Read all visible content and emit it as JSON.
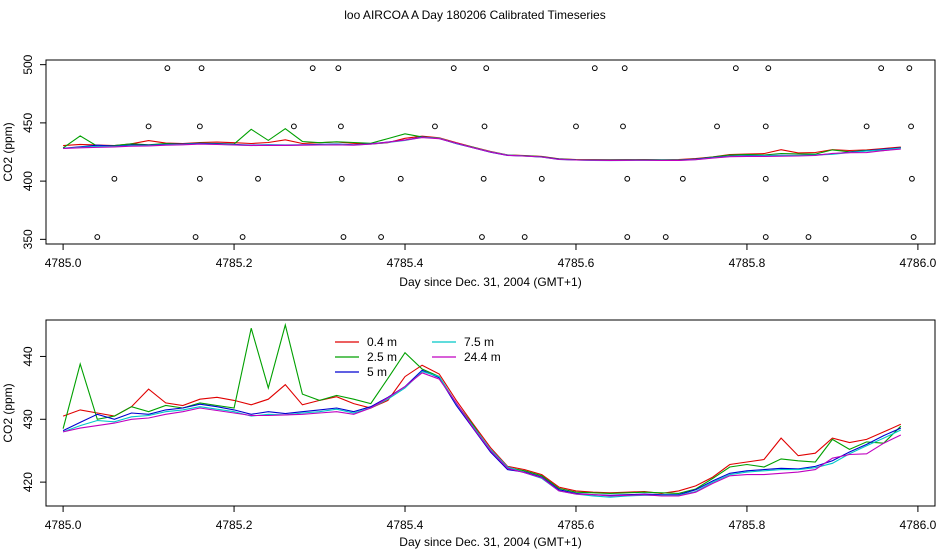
{
  "chart_data": {
    "title": "loo AIRCOA A  Day 180206  Calibrated Timeseries",
    "colors": {
      "0.4 m": "#e00000",
      "2.5 m": "#00a000",
      "5 m": "#0000d0",
      "7.5 m": "#00c8c8",
      "24.4 m": "#c000c0"
    },
    "panels": [
      {
        "type": "line",
        "xlabel": "Day since Dec. 31, 2004 (GMT+1)",
        "ylabel": "CO2 (ppm)",
        "xlim": [
          4784.98,
          4786.02
        ],
        "ylim": [
          346,
          504
        ],
        "xticks": [
          4785.0,
          4785.2,
          4785.4,
          4785.6,
          4785.8,
          4786.0
        ],
        "xtick_labels": [
          "4785.0",
          "4785.2",
          "4785.4",
          "4785.6",
          "4785.8",
          "4786.0"
        ],
        "yticks": [
          350,
          400,
          450,
          500
        ],
        "ytick_labels": [
          "350",
          "400",
          "450",
          "500"
        ],
        "series_names": [
          "0.4 m",
          "2.5 m",
          "5 m",
          "7.5 m",
          "24.4 m"
        ],
        "scatter": {
          "levels": [
            352,
            402,
            447,
            497
          ],
          "points": [
            [
              4785.122,
              497
            ],
            [
              4785.162,
              497
            ],
            [
              4785.292,
              497
            ],
            [
              4785.322,
              497
            ],
            [
              4785.457,
              497
            ],
            [
              4785.495,
              497
            ],
            [
              4785.622,
              497
            ],
            [
              4785.657,
              497
            ],
            [
              4785.787,
              497
            ],
            [
              4785.825,
              497
            ],
            [
              4785.957,
              497
            ],
            [
              4785.99,
              497
            ],
            [
              4785.1,
              447
            ],
            [
              4785.16,
              447
            ],
            [
              4785.27,
              447
            ],
            [
              4785.325,
              447
            ],
            [
              4785.435,
              447
            ],
            [
              4785.493,
              447
            ],
            [
              4785.6,
              447
            ],
            [
              4785.655,
              447
            ],
            [
              4785.765,
              447
            ],
            [
              4785.822,
              447
            ],
            [
              4785.94,
              447
            ],
            [
              4785.992,
              447
            ],
            [
              4785.06,
              402
            ],
            [
              4785.16,
              402
            ],
            [
              4785.228,
              402
            ],
            [
              4785.326,
              402
            ],
            [
              4785.395,
              402
            ],
            [
              4785.492,
              402
            ],
            [
              4785.56,
              402
            ],
            [
              4785.66,
              402
            ],
            [
              4785.725,
              402
            ],
            [
              4785.822,
              402
            ],
            [
              4785.892,
              402
            ],
            [
              4785.993,
              402
            ],
            [
              4785.04,
              352
            ],
            [
              4785.155,
              352
            ],
            [
              4785.21,
              352
            ],
            [
              4785.328,
              352
            ],
            [
              4785.372,
              352
            ],
            [
              4785.49,
              352
            ],
            [
              4785.54,
              352
            ],
            [
              4785.66,
              352
            ],
            [
              4785.705,
              352
            ],
            [
              4785.822,
              352
            ],
            [
              4785.872,
              352
            ],
            [
              4785.995,
              352
            ]
          ]
        }
      },
      {
        "type": "line",
        "xlabel": "Day since Dec. 31, 2004 (GMT+1)",
        "ylabel": "CO2 (ppm)",
        "xlim": [
          4784.98,
          4786.02
        ],
        "ylim": [
          416.2,
          445.8
        ],
        "xticks": [
          4785.0,
          4785.2,
          4785.4,
          4785.6,
          4785.8,
          4786.0
        ],
        "xtick_labels": [
          "4785.0",
          "4785.2",
          "4785.4",
          "4785.6",
          "4785.8",
          "4786.0"
        ],
        "yticks": [
          420,
          430,
          440
        ],
        "ytick_labels": [
          "420",
          "430",
          "440"
        ],
        "legend": {
          "position": "top-center",
          "entries": [
            {
              "name": "0.4 m",
              "color": "#e00000"
            },
            {
              "name": "2.5 m",
              "color": "#00a000"
            },
            {
              "name": "5 m",
              "color": "#0000d0"
            },
            {
              "name": "7.5 m",
              "color": "#00c8c8"
            },
            {
              "name": "24.4 m",
              "color": "#c000c0"
            }
          ]
        }
      }
    ],
    "series": [
      {
        "name": "0.4 m",
        "x": [
          4785.0,
          4785.02,
          4785.04,
          4785.06,
          4785.08,
          4785.1,
          4785.12,
          4785.14,
          4785.16,
          4785.18,
          4785.2,
          4785.22,
          4785.24,
          4785.26,
          4785.28,
          4785.3,
          4785.32,
          4785.34,
          4785.36,
          4785.38,
          4785.4,
          4785.42,
          4785.44,
          4785.46,
          4785.48,
          4785.5,
          4785.52,
          4785.54,
          4785.56,
          4785.58,
          4785.6,
          4785.62,
          4785.64,
          4785.66,
          4785.68,
          4785.7,
          4785.72,
          4785.74,
          4785.76,
          4785.78,
          4785.8,
          4785.82,
          4785.84,
          4785.86,
          4785.88,
          4785.9,
          4785.92,
          4785.94,
          4785.96,
          4785.98
        ],
        "y": [
          430.5,
          431.5,
          431.0,
          430.5,
          432.0,
          434.8,
          432.6,
          432.2,
          433.2,
          433.5,
          433.0,
          432.3,
          433.2,
          435.5,
          432.3,
          433.0,
          433.6,
          432.5,
          431.8,
          433.0,
          436.8,
          438.6,
          437.2,
          433.0,
          429.2,
          425.5,
          422.5,
          422.0,
          421.2,
          419.2,
          418.6,
          418.4,
          418.3,
          418.4,
          418.5,
          418.2,
          418.6,
          419.4,
          420.8,
          422.8,
          423.2,
          423.6,
          427.0,
          424.2,
          424.6,
          427.0,
          426.3,
          426.8,
          428.0,
          429.2
        ]
      },
      {
        "name": "2.5 m",
        "x": [
          4785.0,
          4785.02,
          4785.04,
          4785.06,
          4785.08,
          4785.1,
          4785.12,
          4785.14,
          4785.16,
          4785.18,
          4785.2,
          4785.22,
          4785.24,
          4785.26,
          4785.28,
          4785.3,
          4785.32,
          4785.34,
          4785.36,
          4785.38,
          4785.4,
          4785.42,
          4785.44,
          4785.46,
          4785.48,
          4785.5,
          4785.52,
          4785.54,
          4785.56,
          4785.58,
          4785.6,
          4785.62,
          4785.64,
          4785.66,
          4785.68,
          4785.7,
          4785.72,
          4785.74,
          4785.76,
          4785.78,
          4785.8,
          4785.82,
          4785.84,
          4785.86,
          4785.88,
          4785.9,
          4785.92,
          4785.94,
          4785.96,
          4785.98
        ],
        "y": [
          428.5,
          438.8,
          430.0,
          430.5,
          432.0,
          431.2,
          432.2,
          431.8,
          432.6,
          432.2,
          431.8,
          444.5,
          435.0,
          445.0,
          434.0,
          433.0,
          433.8,
          433.2,
          432.5,
          436.5,
          440.6,
          438.0,
          436.8,
          432.5,
          429.0,
          425.0,
          422.3,
          421.8,
          421.0,
          419.0,
          418.4,
          418.3,
          418.2,
          418.3,
          418.4,
          418.3,
          418.2,
          418.9,
          420.6,
          422.4,
          422.8,
          422.4,
          423.7,
          423.4,
          423.2,
          426.8,
          425.2,
          426.4,
          426.2,
          428.9
        ]
      },
      {
        "name": "5 m",
        "x": [
          4785.0,
          4785.02,
          4785.04,
          4785.06,
          4785.08,
          4785.1,
          4785.12,
          4785.14,
          4785.16,
          4785.18,
          4785.2,
          4785.22,
          4785.24,
          4785.26,
          4785.28,
          4785.3,
          4785.32,
          4785.34,
          4785.36,
          4785.38,
          4785.4,
          4785.42,
          4785.44,
          4785.46,
          4785.48,
          4785.5,
          4785.52,
          4785.54,
          4785.56,
          4785.58,
          4785.6,
          4785.62,
          4785.64,
          4785.66,
          4785.68,
          4785.7,
          4785.72,
          4785.74,
          4785.76,
          4785.78,
          4785.8,
          4785.82,
          4785.84,
          4785.86,
          4785.88,
          4785.9,
          4785.92,
          4785.94,
          4785.96,
          4785.98
        ],
        "y": [
          428.2,
          429.5,
          430.8,
          430.0,
          431.0,
          430.8,
          431.5,
          431.8,
          432.4,
          432.0,
          431.5,
          430.8,
          431.2,
          430.9,
          431.2,
          431.5,
          431.8,
          431.2,
          432.0,
          433.5,
          435.2,
          437.8,
          436.6,
          432.2,
          428.5,
          424.8,
          422.0,
          421.6,
          420.8,
          418.8,
          418.2,
          418.0,
          417.9,
          418.0,
          418.1,
          418.0,
          418.0,
          418.8,
          420.2,
          421.4,
          421.8,
          422.0,
          422.2,
          422.1,
          422.5,
          423.4,
          424.8,
          426.0,
          427.4,
          428.6
        ]
      },
      {
        "name": "7.5 m",
        "x": [
          4785.0,
          4785.02,
          4785.04,
          4785.06,
          4785.08,
          4785.1,
          4785.12,
          4785.14,
          4785.16,
          4785.18,
          4785.2,
          4785.22,
          4785.24,
          4785.26,
          4785.28,
          4785.3,
          4785.32,
          4785.34,
          4785.36,
          4785.38,
          4785.4,
          4785.42,
          4785.44,
          4785.46,
          4785.48,
          4785.5,
          4785.52,
          4785.54,
          4785.56,
          4785.58,
          4785.6,
          4785.62,
          4785.64,
          4785.66,
          4785.68,
          4785.7,
          4785.72,
          4785.74,
          4785.76,
          4785.78,
          4785.8,
          4785.82,
          4785.84,
          4785.86,
          4785.88,
          4785.9,
          4785.92,
          4785.94,
          4785.96,
          4785.98
        ],
        "y": [
          428.0,
          429.0,
          429.8,
          429.6,
          430.4,
          430.6,
          431.2,
          431.5,
          432.0,
          431.6,
          431.2,
          430.5,
          430.8,
          430.7,
          431.0,
          431.2,
          431.6,
          431.0,
          431.8,
          433.2,
          435.0,
          437.6,
          436.8,
          432.5,
          428.8,
          425.2,
          422.4,
          421.5,
          420.6,
          418.6,
          418.1,
          417.8,
          417.6,
          417.8,
          417.9,
          417.9,
          417.9,
          418.5,
          420.0,
          421.2,
          421.6,
          421.8,
          422.0,
          422.0,
          422.3,
          423.0,
          424.5,
          425.8,
          427.0,
          428.3
        ]
      },
      {
        "name": "24.4 m",
        "x": [
          4785.0,
          4785.02,
          4785.04,
          4785.06,
          4785.08,
          4785.1,
          4785.12,
          4785.14,
          4785.16,
          4785.18,
          4785.2,
          4785.22,
          4785.24,
          4785.26,
          4785.28,
          4785.3,
          4785.32,
          4785.34,
          4785.36,
          4785.38,
          4785.4,
          4785.42,
          4785.44,
          4785.46,
          4785.48,
          4785.5,
          4785.52,
          4785.54,
          4785.56,
          4785.58,
          4785.6,
          4785.62,
          4785.64,
          4785.66,
          4785.68,
          4785.7,
          4785.72,
          4785.74,
          4785.76,
          4785.78,
          4785.8,
          4785.82,
          4785.84,
          4785.86,
          4785.88,
          4785.9,
          4785.92,
          4785.94,
          4785.96,
          4785.98
        ],
        "y": [
          428.0,
          428.6,
          429.0,
          429.4,
          430.0,
          430.2,
          430.8,
          431.2,
          431.8,
          431.4,
          431.0,
          430.6,
          430.6,
          430.7,
          430.8,
          431.0,
          431.2,
          430.8,
          431.8,
          433.4,
          435.2,
          437.4,
          436.4,
          432.6,
          428.6,
          425.0,
          422.2,
          421.5,
          420.7,
          418.6,
          418.1,
          418.0,
          417.8,
          417.9,
          418.0,
          417.8,
          417.8,
          418.4,
          419.8,
          421.0,
          421.2,
          421.2,
          421.4,
          421.6,
          422.0,
          423.8,
          424.4,
          424.5,
          426.2,
          427.5
        ]
      }
    ]
  }
}
